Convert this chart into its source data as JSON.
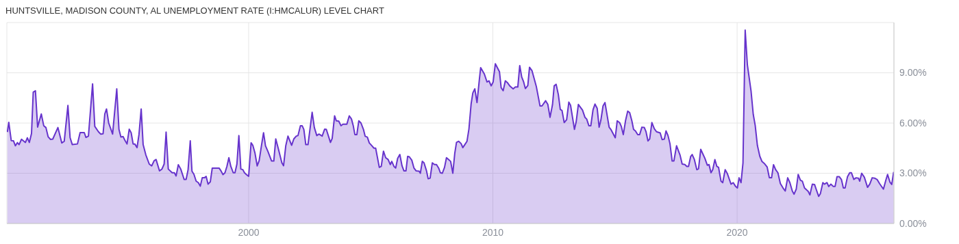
{
  "chart_data": {
    "type": "area",
    "title": "HUNTSVILLE, MADISON COUNTY, AL UNEMPLOYMENT RATE (I:HMCALUR) LEVEL CHART",
    "color": "#6633cc",
    "grid": true,
    "xlim": [
      1990.1,
      2026.42
    ],
    "xticks": [
      2000,
      2010,
      2020
    ],
    "ylim": [
      0,
      12
    ],
    "yticks": [
      {
        "value": 0,
        "label": "0.00%"
      },
      {
        "value": 3,
        "label": "3.00%"
      },
      {
        "value": 6,
        "label": "6.00%"
      },
      {
        "value": 9,
        "label": "9.00%"
      }
    ],
    "x": [
      1990.12,
      1990.18,
      1990.28,
      1990.37,
      1990.45,
      1990.53,
      1990.6,
      1990.7,
      1990.86,
      1990.94,
      1991.02,
      1991.11,
      1991.18,
      1991.27,
      1991.36,
      1991.51,
      1991.61,
      1991.7,
      1991.79,
      1991.89,
      1991.98,
      1992.19,
      1992.35,
      1992.45,
      1992.6,
      1992.69,
      1992.78,
      1992.99,
      1993.1,
      1993.27,
      1993.34,
      1993.44,
      1993.61,
      1993.7,
      1993.85,
      1993.94,
      1994.04,
      1994.11,
      1994.18,
      1994.27,
      1994.43,
      1994.6,
      1994.69,
      1994.77,
      1994.86,
      1994.93,
      1995.02,
      1995.11,
      1995.19,
      1995.27,
      1995.34,
      1995.43,
      1995.51,
      1995.6,
      1995.68,
      1995.79,
      1995.93,
      1996.03,
      1996.13,
      1996.21,
      1996.35,
      1996.45,
      1996.54,
      1996.62,
      1996.71,
      1996.87,
      1996.96,
      1997.03,
      1997.12,
      1997.22,
      1997.36,
      1997.44,
      1997.52,
      1997.61,
      1997.68,
      1997.76,
      1997.85,
      1997.94,
      1998.02,
      1998.1,
      1998.19,
      1998.26,
      1998.34,
      1998.43,
      1998.51,
      1998.79,
      1998.86,
      1998.95,
      1999.03,
      1999.11,
      1999.19,
      1999.27,
      1999.37,
      1999.44,
      1999.52,
      1999.6,
      1999.68,
      1999.76,
      1999.83,
      1999.91,
      2000.0,
      2000.1,
      2000.17,
      2000.26,
      2000.35,
      2000.43,
      2000.52,
      2000.61,
      2000.69,
      2000.79,
      2000.94,
      2001.03,
      2001.11,
      2001.22,
      2001.36,
      2001.43,
      2001.52,
      2001.61,
      2001.76,
      2001.85,
      2001.95,
      2002.02,
      2002.12,
      2002.19,
      2002.26,
      2002.34,
      2002.43,
      2002.52,
      2002.6,
      2002.69,
      2002.79,
      2002.88,
      2003.01,
      2003.11,
      2003.18,
      2003.35,
      2003.42,
      2003.52,
      2003.59,
      2003.69,
      2003.78,
      2003.86,
      2004.02,
      2004.12,
      2004.21,
      2004.28,
      2004.35,
      2004.43,
      2004.51,
      2004.6,
      2004.7,
      2004.77,
      2004.86,
      2004.94,
      2005.03,
      2005.13,
      2005.2,
      2005.35,
      2005.43,
      2005.52,
      2005.61,
      2005.71,
      2005.8,
      2005.86,
      2005.95,
      2006.02,
      2006.1,
      2006.19,
      2006.28,
      2006.36,
      2006.44,
      2006.51,
      2006.58,
      2006.68,
      2006.77,
      2006.86,
      2006.98,
      2007.03,
      2007.11,
      2007.18,
      2007.28,
      2007.35,
      2007.43,
      2007.52,
      2007.61,
      2007.69,
      2007.78,
      2007.85,
      2007.93,
      2008.02,
      2008.1,
      2008.19,
      2008.27,
      2008.36,
      2008.44,
      2008.51,
      2008.6,
      2008.7,
      2008.77,
      2008.85,
      2008.94,
      2009.02,
      2009.11,
      2009.18,
      2009.26,
      2009.35,
      2009.45,
      2009.5,
      2009.65,
      2009.76,
      2009.84,
      2009.93,
      2010.01,
      2010.1,
      2010.27,
      2010.34,
      2010.42,
      2010.51,
      2010.59,
      2010.7,
      2010.83,
      2010.92,
      2011.02,
      2011.1,
      2011.18,
      2011.26,
      2011.33,
      2011.43,
      2011.5,
      2011.6,
      2011.78,
      2011.93,
      2012.01,
      2012.16,
      2012.25,
      2012.34,
      2012.44,
      2012.51,
      2012.59,
      2012.68,
      2012.76,
      2012.83,
      2012.92,
      2013.02,
      2013.11,
      2013.18,
      2013.34,
      2013.41,
      2013.5,
      2013.67,
      2013.77,
      2013.84,
      2013.93,
      2014.01,
      2014.1,
      2014.18,
      2014.27,
      2014.35,
      2014.42,
      2014.51,
      2014.59,
      2014.76,
      2014.83,
      2015.01,
      2015.09,
      2015.19,
      2015.26,
      2015.34,
      2015.43,
      2015.52,
      2015.6,
      2015.69,
      2015.76,
      2015.84,
      2015.93,
      2016.01,
      2016.1,
      2016.2,
      2016.27,
      2016.35,
      2016.42,
      2016.51,
      2016.61,
      2016.7,
      2016.85,
      2016.93,
      2017.02,
      2017.09,
      2017.17,
      2017.25,
      2017.34,
      2017.41,
      2017.52,
      2017.66,
      2017.75,
      2017.86,
      2017.94,
      2018.01,
      2018.1,
      2018.16,
      2018.25,
      2018.35,
      2018.42,
      2018.51,
      2018.68,
      2018.78,
      2018.85,
      2018.93,
      2019.0,
      2019.09,
      2019.17,
      2019.24,
      2019.34,
      2019.41,
      2019.51,
      2019.6,
      2019.75,
      2019.84,
      2019.94,
      2020.01,
      2020.08,
      2020.16,
      2020.24,
      2020.33,
      2020.42,
      2020.57,
      2020.66,
      2020.74,
      2020.83,
      2020.93,
      2021.02,
      2021.13,
      2021.23,
      2021.32,
      2021.41,
      2021.49,
      2021.58,
      2021.67,
      2021.77,
      2021.88,
      2021.97,
      2022.07,
      2022.16,
      2022.26,
      2022.33,
      2022.42,
      2022.5,
      2022.59,
      2022.67,
      2022.76,
      2022.91,
      2022.98,
      2023.08,
      2023.17,
      2023.25,
      2023.34,
      2023.41,
      2023.51,
      2023.58,
      2023.68,
      2023.75,
      2023.84,
      2023.94,
      2024.01,
      2024.09,
      2024.18,
      2024.27,
      2024.35,
      2024.42,
      2024.52,
      2024.61,
      2024.68,
      2024.78,
      2024.87,
      2024.97,
      2025.02,
      2025.1,
      2025.21,
      2025.34,
      2025.43,
      2025.53,
      2025.64,
      2025.73,
      2025.83,
      2025.99,
      2026.09,
      2026.16,
      2026.26,
      2026.33,
      2026.41
    ],
    "values": [
      5.46,
      6.04,
      4.95,
      4.94,
      4.64,
      4.83,
      4.71,
      5.03,
      4.84,
      5.12,
      4.84,
      5.38,
      7.84,
      7.93,
      5.76,
      6.54,
      5.84,
      5.73,
      5.18,
      5.02,
      5.04,
      5.73,
      4.81,
      4.91,
      7.05,
      5.12,
      4.71,
      4.75,
      5.43,
      5.43,
      5.14,
      5.22,
      8.34,
      5.8,
      5.48,
      5.34,
      5.36,
      6.54,
      6.84,
      6.0,
      5.34,
      8.04,
      5.62,
      5.16,
      5.19,
      4.98,
      4.75,
      5.63,
      5.42,
      4.75,
      4.75,
      4.53,
      5.31,
      6.84,
      4.71,
      4.1,
      3.55,
      3.44,
      3.75,
      3.82,
      3.14,
      3.25,
      3.55,
      5.46,
      3.25,
      3.03,
      3.03,
      2.84,
      3.51,
      3.25,
      2.63,
      2.63,
      3.21,
      4.94,
      3.12,
      2.94,
      2.53,
      2.44,
      2.23,
      2.73,
      2.73,
      2.81,
      2.35,
      2.49,
      3.31,
      3.31,
      3.16,
      2.92,
      3.03,
      3.41,
      3.93,
      3.41,
      3.03,
      3.03,
      3.55,
      5.25,
      3.25,
      3.22,
      3.03,
      2.92,
      2.82,
      4.82,
      4.67,
      4.2,
      3.44,
      3.75,
      4.61,
      5.42,
      4.64,
      4.3,
      3.73,
      3.73,
      5.05,
      4.44,
      3.62,
      3.45,
      4.64,
      5.22,
      4.67,
      5.05,
      5.22,
      5.25,
      5.84,
      5.84,
      5.62,
      4.71,
      4.71,
      5.73,
      6.64,
      5.73,
      5.25,
      5.34,
      5.22,
      5.63,
      5.62,
      4.84,
      5.08,
      6.43,
      6.13,
      6.11,
      5.84,
      5.93,
      5.93,
      6.43,
      6.24,
      5.86,
      5.31,
      5.31,
      6.13,
      6.0,
      5.62,
      5.21,
      5.16,
      4.81,
      4.67,
      4.5,
      4.5,
      3.35,
      3.41,
      4.32,
      3.93,
      3.82,
      3.52,
      3.71,
      3.41,
      3.31,
      3.89,
      4.12,
      3.44,
      3.14,
      3.14,
      4.01,
      3.98,
      3.78,
      3.31,
      3.14,
      3.12,
      3.0,
      3.71,
      3.62,
      3.16,
      2.67,
      2.71,
      3.62,
      3.52,
      3.52,
      3.31,
      3.03,
      3.0,
      3.35,
      3.93,
      3.82,
      3.71,
      3.0,
      4.2,
      4.84,
      4.91,
      4.77,
      4.53,
      4.71,
      4.91,
      5.65,
      7.16,
      7.8,
      8.04,
      7.22,
      8.65,
      9.31,
      8.93,
      8.45,
      8.52,
      8.22,
      8.45,
      9.54,
      9.06,
      8.1,
      7.93,
      8.52,
      8.42,
      8.2,
      8.04,
      8.15,
      8.15,
      9.43,
      8.75,
      8.45,
      8.06,
      8.24,
      9.33,
      9.13,
      8.17,
      7.02,
      7.02,
      7.33,
      7.11,
      6.34,
      7.09,
      8.22,
      8.31,
      7.7,
      6.81,
      6.75,
      6.03,
      6.2,
      7.25,
      7.06,
      5.62,
      6.07,
      7.11,
      6.77,
      6.34,
      6.24,
      5.84,
      5.84,
      6.79,
      7.13,
      6.88,
      5.75,
      6.16,
      7.02,
      7.22,
      5.75,
      5.62,
      5.12,
      6.13,
      6.02,
      5.79,
      5.31,
      6.13,
      6.71,
      6.62,
      6.13,
      5.62,
      5.52,
      5.31,
      5.31,
      5.75,
      5.73,
      5.48,
      4.93,
      5.05,
      6.03,
      5.66,
      5.48,
      5.41,
      5.01,
      5.04,
      5.53,
      5.25,
      4.77,
      3.73,
      3.73,
      4.64,
      4.1,
      3.55,
      3.52,
      3.41,
      3.41,
      4.01,
      4.12,
      3.82,
      3.21,
      3.27,
      4.43,
      3.89,
      3.48,
      3.52,
      3.03,
      3.21,
      3.82,
      3.41,
      3.35,
      2.53,
      2.44,
      3.21,
      2.98,
      2.35,
      2.44,
      2.21,
      2.12,
      2.73,
      2.44,
      3.62,
      11.55,
      9.47,
      7.91,
      6.52,
      5.86,
      4.66,
      4.01,
      3.7,
      3.56,
      3.37,
      2.73,
      2.73,
      3.51,
      3.21,
      3.03,
      2.39,
      2.12,
      1.94,
      2.73,
      2.44,
      1.94,
      1.75,
      2.05,
      2.93,
      2.59,
      2.53,
      2.12,
      1.92,
      1.71,
      2.35,
      2.33,
      1.99,
      1.62,
      1.79,
      2.44,
      2.35,
      2.44,
      2.21,
      2.35,
      2.21,
      2.21,
      2.8,
      2.8,
      2.63,
      2.12,
      2.12,
      2.8,
      3.03,
      3.03,
      2.63,
      2.73,
      2.7,
      2.53,
      3.0,
      2.76,
      2.16,
      2.35,
      2.73,
      2.7,
      2.63,
      2.39,
      2.05,
      2.59,
      2.93,
      2.46,
      2.33,
      3.08
    ]
  }
}
